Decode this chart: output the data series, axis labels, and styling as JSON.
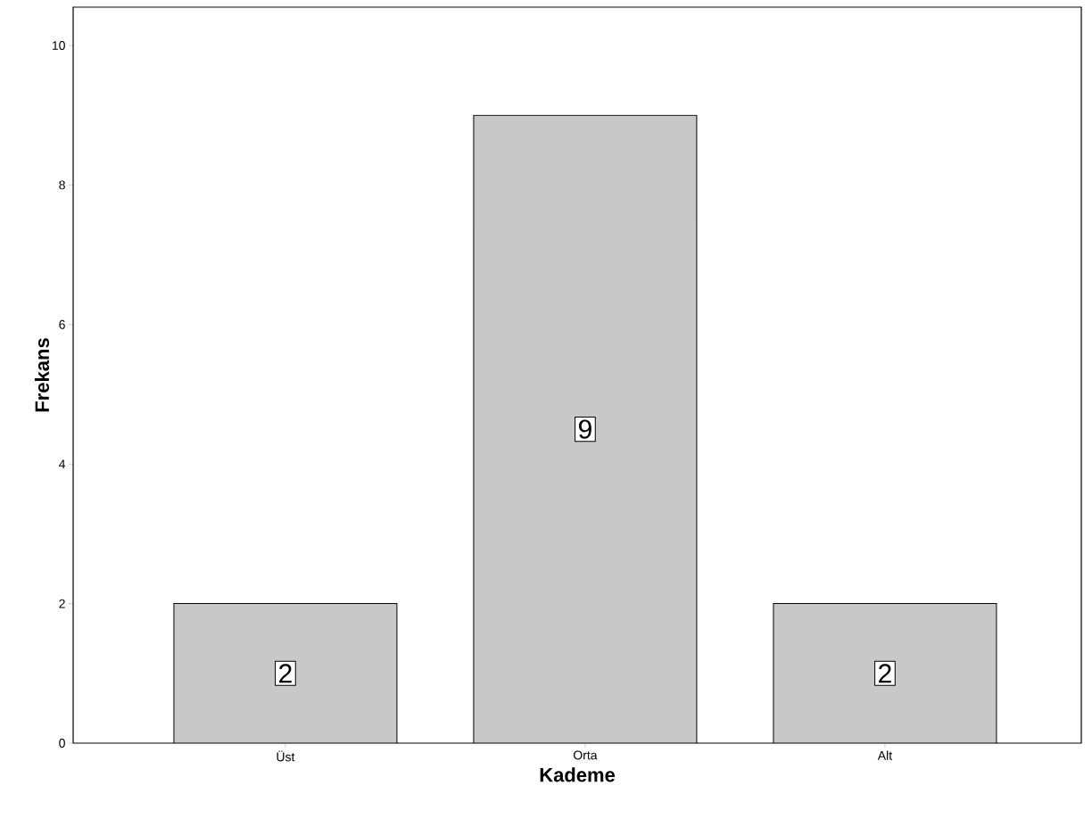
{
  "chart_data": {
    "type": "bar",
    "xlabel": "Kademe",
    "ylabel": "Frekans",
    "categories": [
      "Üst",
      "Orta",
      "Alt"
    ],
    "values": [
      2,
      9,
      2
    ],
    "color": "#c8c8c8",
    "ylim": [
      0,
      10.55
    ],
    "yticks": [
      0,
      2,
      4,
      6,
      8,
      10
    ],
    "data_labels": true
  }
}
